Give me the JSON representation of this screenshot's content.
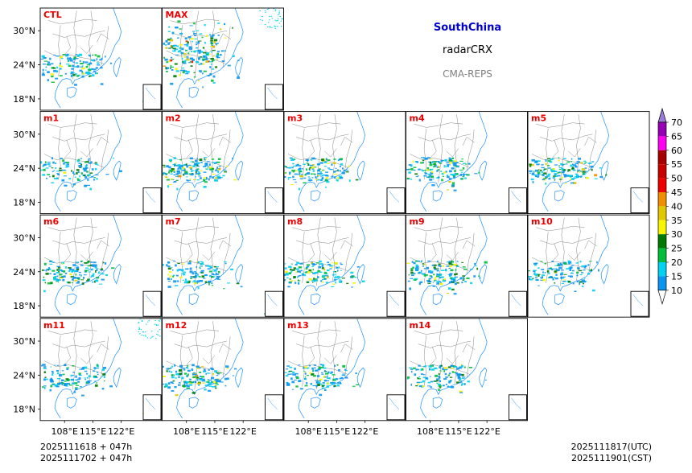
{
  "header": {
    "region": "SouthChina",
    "region_color": "#0000cc",
    "variable": "radarCRX",
    "system": "CMA-REPS",
    "system_color": "#808080"
  },
  "chart_data": {
    "type": "heatmap",
    "title": "radarCRX",
    "x_ticks": [
      "108°E",
      "115°E",
      "122°E"
    ],
    "y_ticks": [
      "30°N",
      "24°N",
      "18°N"
    ],
    "label_color": "#ee0000",
    "panels": [
      {
        "label": "CTL",
        "intensity": 0.4
      },
      {
        "label": "MAX",
        "intensity": 1.0
      },
      {
        "label": "m1",
        "intensity": 0.3
      },
      {
        "label": "m2",
        "intensity": 0.7
      },
      {
        "label": "m3",
        "intensity": 0.6
      },
      {
        "label": "m4",
        "intensity": 0.5
      },
      {
        "label": "m5",
        "intensity": 0.6
      },
      {
        "label": "m6",
        "intensity": 0.5
      },
      {
        "label": "m7",
        "intensity": 0.4
      },
      {
        "label": "m8",
        "intensity": 0.5
      },
      {
        "label": "m9",
        "intensity": 0.6
      },
      {
        "label": "m10",
        "intensity": 0.4
      },
      {
        "label": "m11",
        "intensity": 0.4
      },
      {
        "label": "m12",
        "intensity": 0.6
      },
      {
        "label": "m13",
        "intensity": 0.4
      },
      {
        "label": "m14",
        "intensity": 0.4
      }
    ],
    "colorbar": {
      "levels": [
        10,
        15,
        20,
        25,
        30,
        35,
        40,
        45,
        50,
        55,
        60,
        65,
        70
      ],
      "colors": [
        "#0a96f0",
        "#00d2f0",
        "#00be3c",
        "#007a00",
        "#f6f600",
        "#e1c800",
        "#f09000",
        "#ee0000",
        "#c80000",
        "#a80000",
        "#ff00f0",
        "#9600b4",
        "#9b7cd6"
      ],
      "extend": "both"
    }
  },
  "footer": {
    "init_utc": "2025111618  +  047h",
    "init_cst": "2025111702  +  047h",
    "valid_utc": "2025111817(UTC)",
    "valid_cst": "2025111901(CST)"
  }
}
